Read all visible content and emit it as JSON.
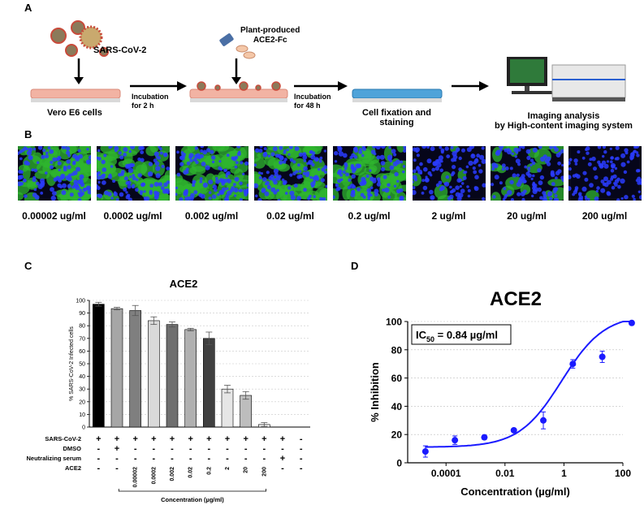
{
  "panels": {
    "a": "A",
    "b": "B",
    "c": "C",
    "d": "D"
  },
  "schematic": {
    "virus_label": "SARS-CoV-2",
    "cells_label": "Vero E6 cells",
    "incubation1": [
      "Incubation",
      "for 2 h"
    ],
    "ace2_label": [
      "Plant-produced",
      "ACE2-Fc"
    ],
    "incubation2": [
      "Incubation",
      "for 48 h"
    ],
    "fixation": [
      "Cell fixation and",
      "staining"
    ],
    "imaging": [
      "Imaging analysis",
      "by High-content imaging system"
    ]
  },
  "micrographs": [
    {
      "label": "0.00002 ug/ml",
      "infection": 0.95
    },
    {
      "label": "0.0002 ug/ml",
      "infection": 0.92
    },
    {
      "label": "0.002 ug/ml",
      "infection": 0.85
    },
    {
      "label": "0.02 ug/ml",
      "infection": 0.82
    },
    {
      "label": "0.2 ug/ml",
      "infection": 0.7
    },
    {
      "label": "2 ug/ml",
      "infection": 0.08
    },
    {
      "label": "20 ug/ml",
      "infection": 0.25
    },
    {
      "label": "200 ug/ml",
      "infection": 0.02
    }
  ],
  "chart_data": [
    {
      "type": "bar",
      "title": "ACE2",
      "ylabel": "% SARS-CoV-2 Infected cells",
      "xlabel": "Concentration (µg/ml)",
      "ylim": [
        0,
        100
      ],
      "yticks": [
        0,
        10,
        20,
        30,
        40,
        50,
        60,
        70,
        80,
        90,
        100
      ],
      "values": [
        97,
        93.5,
        92,
        84,
        81,
        77,
        70,
        30,
        25,
        2,
        0,
        0
      ],
      "errors": [
        1.5,
        1,
        4,
        3,
        2,
        1,
        5,
        3,
        3,
        1.5,
        0,
        0
      ],
      "colors": [
        "#000000",
        "#a6a6a6",
        "#7f7f7f",
        "#d9d9d9",
        "#6f6f6f",
        "#b0b0b0",
        "#404040",
        "#e6e6e6",
        "#bdbdbd",
        "#f2f2f2",
        "#ffffff",
        "#ffffff"
      ],
      "rows": [
        {
          "label": "SARS-CoV-2",
          "marks": [
            "+",
            "+",
            "+",
            "+",
            "+",
            "+",
            "+",
            "+",
            "+",
            "+",
            "+",
            "-"
          ]
        },
        {
          "label": "DMSO",
          "marks": [
            "-",
            "+",
            "-",
            "-",
            "-",
            "-",
            "-",
            "-",
            "-",
            "-",
            "-",
            "-"
          ]
        },
        {
          "label": "Neutralizing serum",
          "marks": [
            "-",
            "-",
            "-",
            "-",
            "-",
            "-",
            "-",
            "-",
            "-",
            "-",
            "+",
            "-"
          ]
        },
        {
          "label": "ACE2",
          "marks": [
            "-",
            "-",
            "0.00002",
            "0.0002",
            "0.002",
            "0.02",
            "0.2",
            "2",
            "20",
            "200",
            "-",
            "-"
          ]
        }
      ]
    },
    {
      "type": "scatter",
      "title": "ACE2",
      "annotation_main": "IC",
      "annotation_sub": "50",
      "annotation_rest": " = 0.84 µg/ml",
      "xlabel": "Concentration (µg/ml)",
      "ylabel": "% Inhibition",
      "xscale": "log",
      "xlim": [
        5e-06,
        100
      ],
      "ylim": [
        0,
        100
      ],
      "xticks": [
        "0.0001",
        "0.01",
        "1",
        "100"
      ],
      "yticks": [
        0,
        20,
        40,
        60,
        80,
        100
      ],
      "x": [
        2e-05,
        0.0002,
        0.002,
        0.02,
        0.2,
        2,
        20,
        200
      ],
      "y": [
        8,
        16,
        18,
        23,
        30,
        70,
        75,
        99
      ],
      "errors": [
        4,
        3,
        1.5,
        1,
        6,
        3,
        4,
        1
      ],
      "fit_bottom": 11,
      "fit_top": 105,
      "fit_ic50": 0.84,
      "fit_hill": 0.6,
      "color": "#1a1aff"
    }
  ]
}
